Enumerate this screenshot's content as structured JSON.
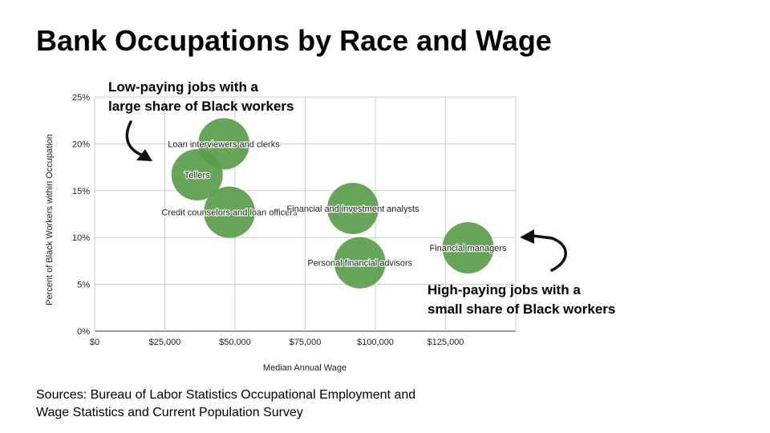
{
  "slide": {
    "title": "Bank Occupations by Race and Wage",
    "annotation_low_line1": "Low-paying jobs with a",
    "annotation_low_line2": "large share of Black workers",
    "annotation_high_line1": "High-paying jobs with a",
    "annotation_high_line2": "small share of Black workers",
    "source_line1": "Sources: Bureau of Labor Statistics Occupational Employment and",
    "source_line2": "Wage Statistics and Current Population Survey"
  },
  "colors": {
    "bubble": "#5a9e4b",
    "grid": "#cccccc",
    "arrow": "#111111"
  },
  "chart_data": {
    "type": "scatter",
    "title": "",
    "xlabel": "Median Annual Wage",
    "ylabel": "Percent of Black Workers within Occupation",
    "xlim": [
      0,
      150000
    ],
    "ylim": [
      0,
      25
    ],
    "x_ticks": [
      0,
      25000,
      50000,
      75000,
      100000,
      125000
    ],
    "x_tick_labels": [
      "$0",
      "$25,000",
      "$50,000",
      "$75,000",
      "$100,000",
      "$125,000"
    ],
    "y_ticks": [
      0,
      5,
      10,
      15,
      20,
      25
    ],
    "y_tick_labels": [
      "0%",
      "5%",
      "10%",
      "15%",
      "20%",
      "25%"
    ],
    "grid": true,
    "points": [
      {
        "label": "Loan interviewers and clerks",
        "x": 46000,
        "y": 20.0
      },
      {
        "label": "Tellers",
        "x": 36500,
        "y": 16.7
      },
      {
        "label": "Credit counselors and loan officers",
        "x": 48000,
        "y": 12.7
      },
      {
        "label": "Financial and investment analysts",
        "x": 92000,
        "y": 13.1
      },
      {
        "label": "Personal financial advisors",
        "x": 94500,
        "y": 7.3
      },
      {
        "label": "Financial managers",
        "x": 133000,
        "y": 8.9
      }
    ]
  }
}
